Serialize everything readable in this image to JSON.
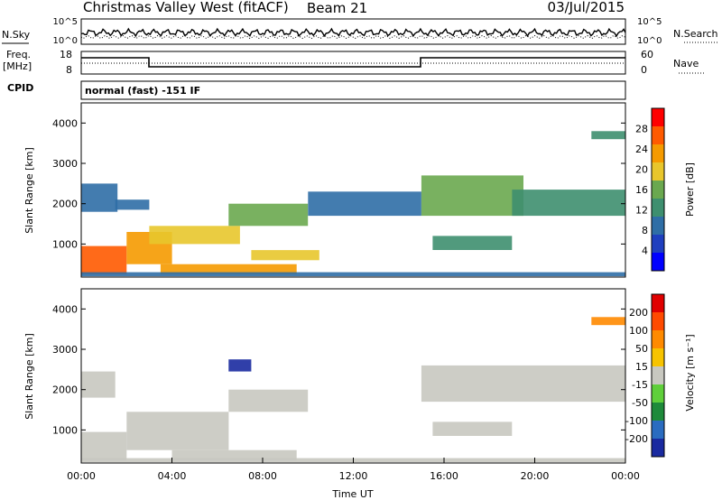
{
  "header": {
    "site": "Christmas Valley West (fitACF)",
    "beam": "Beam 21",
    "date": "03/Jul/2015"
  },
  "panels": {
    "noise": {
      "left_label": "N.Sky",
      "right_label": "N.Search",
      "left_ticks": [
        "10^5",
        "10^0"
      ],
      "right_ticks": [
        "10^5",
        "10^0"
      ]
    },
    "freq": {
      "left_label_1": "Freq.",
      "left_label_2": "[MHz]",
      "right_label": "Nave",
      "left_ticks": [
        "18",
        "8"
      ],
      "right_ticks": [
        "60",
        "0"
      ]
    },
    "cpid": {
      "label": "CPID",
      "text": "normal (fast) -151 IF"
    }
  },
  "chart_data": [
    {
      "type": "heatmap",
      "name": "power",
      "ylabel": "Slant Range [km]",
      "xlabel": "",
      "ylim": [
        180,
        4500
      ],
      "xlim": [
        0,
        24
      ],
      "yticks": [
        "1000",
        "2000",
        "3000",
        "4000"
      ],
      "xticks": [],
      "colorbar": {
        "label": "Power [dB]",
        "range": [
          0,
          32
        ],
        "ticks": [
          "4",
          "8",
          "12",
          "16",
          "20",
          "24",
          "28"
        ],
        "colors": [
          "#0000ff",
          "#1f3fbf",
          "#2f6ea6",
          "#3e8f6f",
          "#6aa84f",
          "#e8c62c",
          "#f59a00",
          "#ff5a00",
          "#ff0000"
        ]
      },
      "regions": [
        {
          "t0": 0.0,
          "t1": 2.0,
          "r0": 250,
          "r1": 950,
          "level": 28
        },
        {
          "t0": 2.0,
          "t1": 4.0,
          "r0": 500,
          "r1": 1300,
          "level": 24
        },
        {
          "t0": 3.0,
          "t1": 7.0,
          "r0": 1000,
          "r1": 1450,
          "level": 20
        },
        {
          "t0": 6.5,
          "t1": 10.0,
          "r0": 1450,
          "r1": 2000,
          "level": 16
        },
        {
          "t0": 0.0,
          "t1": 1.6,
          "r0": 1800,
          "r1": 2500,
          "level": 10
        },
        {
          "t0": 1.5,
          "t1": 3.0,
          "r0": 1850,
          "r1": 2100,
          "level": 8
        },
        {
          "t0": 3.5,
          "t1": 9.5,
          "r0": 250,
          "r1": 500,
          "level": 22
        },
        {
          "t0": 7.5,
          "t1": 10.5,
          "r0": 600,
          "r1": 850,
          "level": 18
        },
        {
          "t0": 10.0,
          "t1": 15.0,
          "r0": 1700,
          "r1": 2300,
          "level": 10
        },
        {
          "t0": 15.0,
          "t1": 19.5,
          "r0": 1700,
          "r1": 2700,
          "level": 16
        },
        {
          "t0": 15.5,
          "t1": 19.0,
          "r0": 850,
          "r1": 1200,
          "level": 14
        },
        {
          "t0": 19.0,
          "t1": 24.0,
          "r0": 1700,
          "r1": 2350,
          "level": 14
        },
        {
          "t0": 22.5,
          "t1": 24.0,
          "r0": 3600,
          "r1": 3800,
          "level": 12
        },
        {
          "t0": 0.0,
          "t1": 24.0,
          "r0": 200,
          "r1": 300,
          "level": 10
        }
      ]
    },
    {
      "type": "heatmap",
      "name": "velocity",
      "ylabel": "Slant Range [km]",
      "xlabel": "Time UT",
      "ylim": [
        180,
        4500
      ],
      "xlim": [
        0,
        24
      ],
      "yticks": [
        "1000",
        "2000",
        "3000",
        "4000"
      ],
      "xticks": [
        "00:00",
        "04:00",
        "08:00",
        "12:00",
        "16:00",
        "20:00",
        "00:00"
      ],
      "colorbar": {
        "label": "Velocity [m s⁻¹]",
        "ticks": [
          "200",
          "100",
          "50",
          "15",
          "-15",
          "-50",
          "-100",
          "-200"
        ],
        "colors": [
          "#1a2aa0",
          "#2a6cc0",
          "#1e8a3a",
          "#5fcf3a",
          "#c8c8c0",
          "#f7c300",
          "#ff8a00",
          "#ff4a00",
          "#e00000"
        ]
      },
      "regions": [
        {
          "t0": 0.0,
          "t1": 2.0,
          "r0": 250,
          "r1": 950,
          "level": "gray"
        },
        {
          "t0": 0.0,
          "t1": 1.5,
          "r0": 1800,
          "r1": 2450,
          "level": "gray"
        },
        {
          "t0": 2.0,
          "t1": 6.5,
          "r0": 500,
          "r1": 1450,
          "level": "gray"
        },
        {
          "t0": 6.5,
          "t1": 10.0,
          "r0": 1450,
          "r1": 2000,
          "level": "gray"
        },
        {
          "t0": 4.0,
          "t1": 9.5,
          "r0": 250,
          "r1": 500,
          "level": "gray"
        },
        {
          "t0": 6.5,
          "t1": 7.5,
          "r0": 2450,
          "r1": 2750,
          "level": "blue"
        },
        {
          "t0": 15.0,
          "t1": 24.0,
          "r0": 1700,
          "r1": 2600,
          "level": "gray"
        },
        {
          "t0": 15.5,
          "t1": 19.0,
          "r0": 850,
          "r1": 1200,
          "level": "gray"
        },
        {
          "t0": 22.5,
          "t1": 24.0,
          "r0": 3600,
          "r1": 3800,
          "level": "orange"
        },
        {
          "t0": 0.0,
          "t1": 24.0,
          "r0": 200,
          "r1": 300,
          "level": "mixed"
        }
      ]
    }
  ]
}
